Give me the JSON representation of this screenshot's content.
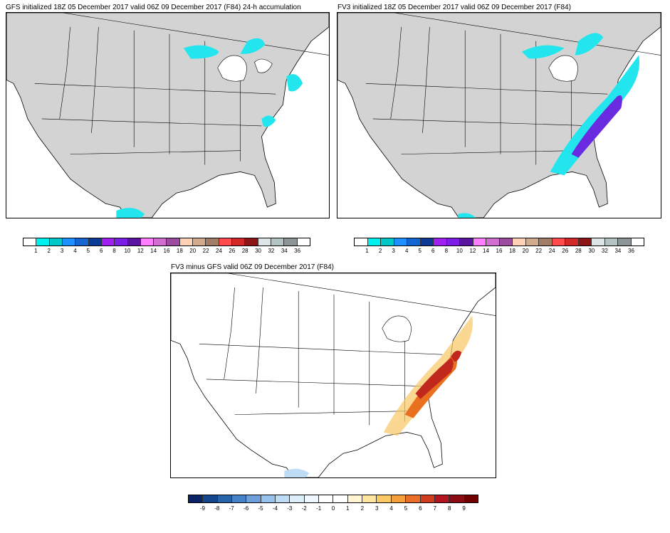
{
  "panels": [
    {
      "title": "GFS initialized 18Z 05 December 2017 valid 06Z 09 December 2017 (F84) 24-h accumulation"
    },
    {
      "title": "FV3 initialized 18Z 05 December 2017 valid 06Z 09 December 2017 (F84)"
    },
    {
      "title": "FV3 minus GFS valid 06Z 09 December 2017 (F84)"
    }
  ],
  "accum_colorbar": {
    "labels": [
      "1",
      "2",
      "3",
      "4",
      "5",
      "6",
      "8",
      "10",
      "12",
      "14",
      "16",
      "18",
      "20",
      "22",
      "24",
      "26",
      "28",
      "30",
      "32",
      "34",
      "36"
    ],
    "colors": [
      "#ffffff",
      "#00f0f0",
      "#00c8c8",
      "#1e90ff",
      "#1464d2",
      "#0a3c96",
      "#a020f0",
      "#7d1ee6",
      "#5a14a0",
      "#ff7dff",
      "#d26ed2",
      "#9b4ba0",
      "#ffd2b4",
      "#d2aa8c",
      "#a07d64",
      "#ff4b4b",
      "#d22828",
      "#8c1414",
      "#dce6e6",
      "#b4c3c3",
      "#8c9696",
      "#ffffff"
    ]
  },
  "diff_colorbar": {
    "labels": [
      "-9",
      "-8",
      "-7",
      "-6",
      "-5",
      "-4",
      "-3",
      "-2",
      "-1",
      "0",
      "1",
      "2",
      "3",
      "4",
      "5",
      "6",
      "7",
      "8",
      "9"
    ],
    "colors": [
      "#0a2364",
      "#14468c",
      "#2864aa",
      "#4682c8",
      "#6ea0dc",
      "#96c3eb",
      "#bedcf5",
      "#dceefa",
      "#f0f8ff",
      "#ffffff",
      "#ffffff",
      "#fff5d2",
      "#ffe6a0",
      "#fac864",
      "#f5a03c",
      "#eb6e28",
      "#d23c1e",
      "#b4141e",
      "#8c0a14",
      "#6e0000"
    ]
  },
  "map": {
    "land_color": "#d3d3d3",
    "diff_land_color": "#ffffff",
    "line_color": "#000000",
    "snow_color": "#22e5ee",
    "heavy_color": "#6a2ae0",
    "diff_warm_color": "#e8701e",
    "diff_strong_color": "#c0281e"
  }
}
